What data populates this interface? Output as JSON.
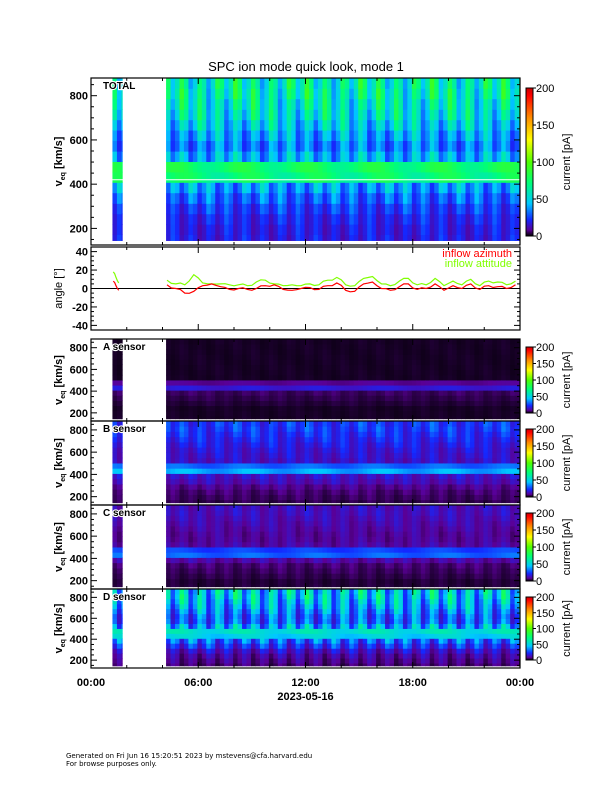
{
  "chart_data": {
    "type": "heatmap",
    "title": "SPC ion mode quick look, mode 1",
    "xlabel": "2023-05-16",
    "x_tick_labels": [
      "00:00",
      "06:00",
      "12:00",
      "18:00",
      "00:00"
    ],
    "xlim_hours": [
      0,
      24
    ],
    "data_intervals_hours": [
      [
        1.2,
        1.75
      ],
      [
        4.2,
        24
      ]
    ],
    "time_bin_hours": 0.25,
    "stripe_period_hours": 1.0,
    "velocity_ylabel": {
      "v": "v",
      "sub": "eq",
      "unit": " [km/s]"
    },
    "velocity_ylim": [
      125,
      880
    ],
    "velocity_ticks": [
      "200",
      "400",
      "600",
      "800"
    ],
    "velocity_bin_centers": [
      148,
      196,
      243,
      290,
      337,
      385,
      432,
      479,
      526,
      573,
      621,
      668,
      715,
      762,
      810,
      857
    ],
    "colorbar": {
      "label": "current [pA]",
      "range": [
        0,
        200
      ],
      "ticks": [
        "0",
        "50",
        "100",
        "150",
        "200"
      ]
    },
    "spectrograms": [
      {
        "label": "TOTAL",
        "stripe_amplitude": 0.35,
        "profile_pA": [
          18,
          18,
          20,
          24,
          30,
          38,
          72,
          76,
          42,
          34,
          40,
          48,
          55,
          58,
          62,
          62
        ]
      },
      {
        "label": "A sensor",
        "stripe_amplitude": 0.2,
        "profile_pA": [
          2,
          2,
          2,
          3,
          4,
          5,
          16,
          8,
          2,
          2,
          2,
          2,
          2,
          2,
          2,
          2
        ]
      },
      {
        "label": "B sensor",
        "stripe_amplitude": 0.3,
        "profile_pA": [
          4,
          5,
          6,
          8,
          12,
          14,
          40,
          30,
          14,
          15,
          16,
          18,
          20,
          22,
          24,
          24
        ]
      },
      {
        "label": "C sensor",
        "stripe_amplitude": 0.3,
        "profile_pA": [
          3,
          3,
          4,
          5,
          6,
          10,
          30,
          25,
          10,
          9,
          9,
          10,
          11,
          12,
          13,
          13
        ]
      },
      {
        "label": "D sensor",
        "stripe_amplitude": 0.5,
        "profile_pA": [
          6,
          8,
          10,
          14,
          22,
          30,
          48,
          55,
          40,
          30,
          30,
          35,
          40,
          44,
          48,
          48
        ]
      }
    ],
    "angle_panel": {
      "ylabel": "angle [°]",
      "ylim": [
        -45,
        45
      ],
      "y_ticks": [
        "-40",
        "-20",
        "0",
        "20",
        "40"
      ],
      "series": [
        {
          "name": "inflow azimuth",
          "color": "#ff0000",
          "x": [
            1.25,
            1.4,
            1.55,
            4.25,
            4.75,
            5.25,
            5.75,
            6.25,
            6.75,
            7.25,
            7.75,
            8.25,
            8.75,
            9.25,
            9.75,
            10.25,
            10.75,
            11.25,
            11.75,
            12.25,
            12.75,
            13.25,
            13.75,
            14.25,
            14.75,
            15.25,
            15.75,
            16.25,
            16.75,
            17.25,
            17.75,
            18.25,
            18.75,
            19.25,
            19.75,
            20.25,
            20.75,
            21.25,
            21.75,
            22.25,
            22.75,
            23.25,
            23.75
          ],
          "y": [
            8,
            3,
            -2,
            4,
            0,
            -5,
            -3,
            3,
            5,
            2,
            -1,
            0,
            -1,
            0,
            3,
            4,
            -1,
            -2,
            0,
            1,
            -1,
            3,
            6,
            -2,
            -3,
            5,
            7,
            0,
            -2,
            2,
            5,
            -1,
            0,
            5,
            -2,
            3,
            0,
            5,
            -1,
            3,
            2,
            0,
            4
          ]
        },
        {
          "name": "inflow attitude",
          "color": "#80ff00",
          "x": [
            1.25,
            1.4,
            1.55,
            4.25,
            4.75,
            5.25,
            5.75,
            6.25,
            6.75,
            7.25,
            7.75,
            8.25,
            8.75,
            9.25,
            9.75,
            10.25,
            10.75,
            11.25,
            11.75,
            12.25,
            12.75,
            13.25,
            13.75,
            14.25,
            14.75,
            15.25,
            15.75,
            16.25,
            16.75,
            17.25,
            17.75,
            18.25,
            18.75,
            19.25,
            19.75,
            20.25,
            20.75,
            21.25,
            21.75,
            22.25,
            22.75,
            23.25,
            23.75
          ],
          "y": [
            18,
            12,
            6,
            9,
            5,
            4,
            15,
            6,
            5,
            5,
            4,
            4,
            3,
            7,
            9,
            5,
            3,
            4,
            3,
            5,
            4,
            9,
            12,
            4,
            3,
            11,
            13,
            5,
            3,
            8,
            11,
            4,
            4,
            11,
            3,
            8,
            4,
            10,
            3,
            8,
            7,
            4,
            8
          ]
        }
      ]
    }
  },
  "footer": {
    "line1": "Generated on Fri Jun 16 15:20:51 2023 by mstevens@cfa.harvard.edu",
    "line2": "For browse purposes only."
  }
}
